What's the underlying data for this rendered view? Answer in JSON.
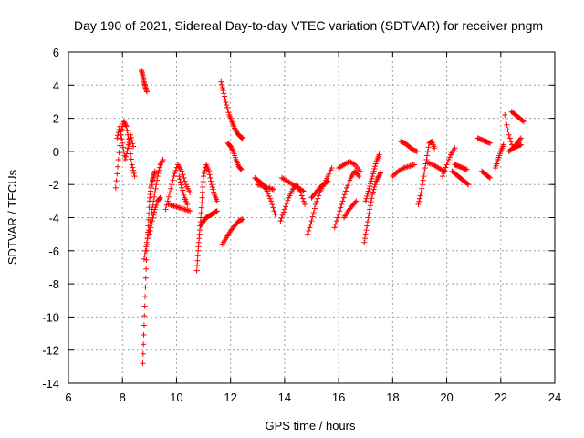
{
  "chart_data": {
    "type": "scatter",
    "title": "Day 190 of 2021, Sidereal Day-to-day VTEC variation (SDTVAR) for receiver pngm",
    "xlabel": "GPS time / hours",
    "ylabel": "SDTVAR / TECUs",
    "xlim": [
      6,
      24
    ],
    "ylim": [
      -14,
      6
    ],
    "xticks": [
      6,
      8,
      10,
      12,
      14,
      16,
      18,
      20,
      22,
      24
    ],
    "yticks": [
      6,
      4,
      2,
      0,
      -2,
      -4,
      -6,
      -8,
      -10,
      -12,
      -14
    ],
    "grid": true,
    "marker": "plus",
    "color": "#ff0000",
    "arcs": [
      {
        "x": [
          7.75,
          7.85,
          7.95,
          8.05,
          8.15,
          8.25,
          8.35,
          8.45
        ],
        "y": [
          -2.2,
          -0.5,
          1.2,
          1.8,
          1.5,
          0.5,
          -0.8,
          -1.5
        ]
      },
      {
        "x": [
          7.8,
          7.9,
          8.0,
          8.1,
          8.2,
          8.3,
          8.4
        ],
        "y": [
          0.8,
          1.5,
          0.5,
          -0.5,
          0.2,
          1.0,
          0.3
        ]
      },
      {
        "x": [
          8.7,
          8.75,
          8.8,
          8.85,
          8.9
        ],
        "y": [
          4.9,
          4.6,
          4.2,
          3.9,
          3.6
        ]
      },
      {
        "x": [
          8.75,
          8.8,
          8.85,
          8.9,
          8.95,
          9.0,
          9.05,
          9.1,
          9.15,
          9.2
        ],
        "y": [
          -12.8,
          -10.5,
          -8.2,
          -6.0,
          -4.5,
          -3.0,
          -2.2,
          -1.8,
          -1.5,
          -1.2
        ]
      },
      {
        "x": [
          8.8,
          8.9,
          9.0,
          9.1,
          9.2,
          9.3,
          9.4,
          9.5
        ],
        "y": [
          -6.5,
          -5.5,
          -4.5,
          -3.5,
          -2.5,
          -1.5,
          -0.8,
          -0.5
        ]
      },
      {
        "x": [
          9.0,
          9.1,
          9.2,
          9.3,
          9.4
        ],
        "y": [
          -5.0,
          -4.2,
          -3.5,
          -3.0,
          -2.8
        ]
      },
      {
        "x": [
          9.6,
          9.75,
          9.9,
          10.05,
          10.2,
          10.35,
          10.5
        ],
        "y": [
          -3.5,
          -2.5,
          -1.5,
          -0.8,
          -1.2,
          -2.0,
          -2.5
        ]
      },
      {
        "x": [
          9.7,
          9.9,
          10.1,
          10.3,
          10.5
        ],
        "y": [
          -3.2,
          -3.3,
          -3.4,
          -3.5,
          -3.6
        ]
      },
      {
        "x": [
          10.1,
          10.2,
          10.3,
          10.4
        ],
        "y": [
          -1.5,
          -2.2,
          -2.8,
          -3.2
        ]
      },
      {
        "x": [
          10.75,
          10.8,
          10.85,
          10.9,
          10.95,
          11.0,
          11.1,
          11.2,
          11.3,
          11.4,
          11.5
        ],
        "y": [
          -7.2,
          -6.0,
          -5.0,
          -4.0,
          -2.8,
          -1.5,
          -0.8,
          -1.2,
          -2.0,
          -2.6,
          -3.0
        ]
      },
      {
        "x": [
          10.9,
          11.0,
          11.1,
          11.2,
          11.3,
          11.4,
          11.5
        ],
        "y": [
          -4.5,
          -4.2,
          -4.0,
          -3.9,
          -3.8,
          -3.7,
          -3.6
        ]
      },
      {
        "x": [
          11.65,
          11.75,
          11.85,
          11.95,
          12.05,
          12.15,
          12.25,
          12.35,
          12.45
        ],
        "y": [
          4.2,
          3.5,
          2.8,
          2.2,
          1.8,
          1.4,
          1.1,
          0.9,
          0.8
        ]
      },
      {
        "x": [
          11.9,
          12.0,
          12.1,
          12.2,
          12.3,
          12.4
        ],
        "y": [
          0.5,
          0.3,
          0.0,
          -0.5,
          -0.9,
          -1.1
        ]
      },
      {
        "x": [
          11.7,
          11.85,
          12.0,
          12.15,
          12.3,
          12.45
        ],
        "y": [
          -5.6,
          -5.2,
          -4.8,
          -4.5,
          -4.2,
          -4.1
        ]
      },
      {
        "x": [
          12.9,
          13.05,
          13.2,
          13.35,
          13.5,
          13.65
        ],
        "y": [
          -1.6,
          -1.8,
          -2.0,
          -2.4,
          -3.0,
          -3.8
        ]
      },
      {
        "x": [
          13.0,
          13.2,
          13.4,
          13.6
        ],
        "y": [
          -2.0,
          -2.1,
          -2.2,
          -2.3
        ]
      },
      {
        "x": [
          13.85,
          14.0,
          14.15,
          14.3,
          14.45,
          14.6,
          14.75
        ],
        "y": [
          -4.2,
          -3.5,
          -2.8,
          -2.3,
          -2.0,
          -2.5,
          -3.2
        ]
      },
      {
        "x": [
          13.9,
          14.1,
          14.3,
          14.5,
          14.7
        ],
        "y": [
          -1.6,
          -1.8,
          -2.0,
          -2.2,
          -2.4
        ]
      },
      {
        "x": [
          14.85,
          15.0,
          15.15,
          15.3,
          15.45,
          15.6,
          15.75
        ],
        "y": [
          -5.0,
          -4.2,
          -3.2,
          -2.5,
          -2.0,
          -1.5,
          -1.0
        ]
      },
      {
        "x": [
          15.0,
          15.15,
          15.3,
          15.45,
          15.6
        ],
        "y": [
          -2.8,
          -2.5,
          -2.2,
          -2.0,
          -1.8
        ]
      },
      {
        "x": [
          15.85,
          16.0,
          16.15,
          16.3,
          16.45,
          16.6,
          16.75
        ],
        "y": [
          -4.6,
          -3.8,
          -3.0,
          -2.2,
          -1.6,
          -1.2,
          -1.5
        ]
      },
      {
        "x": [
          16.2,
          16.35,
          16.5,
          16.65
        ],
        "y": [
          -4.0,
          -3.6,
          -3.3,
          -3.0
        ]
      },
      {
        "x": [
          16.0,
          16.2,
          16.4,
          16.6,
          16.8
        ],
        "y": [
          -1.0,
          -0.8,
          -0.6,
          -0.8,
          -1.2
        ]
      },
      {
        "x": [
          16.95,
          17.05,
          17.15,
          17.25,
          17.35,
          17.45,
          17.55
        ],
        "y": [
          -5.5,
          -4.5,
          -3.5,
          -2.6,
          -2.0,
          -1.6,
          -1.3
        ]
      },
      {
        "x": [
          17.0,
          17.1,
          17.2,
          17.3,
          17.4,
          17.5
        ],
        "y": [
          -3.0,
          -2.4,
          -1.8,
          -1.2,
          -0.6,
          -0.2
        ]
      },
      {
        "x": [
          18.0,
          18.2,
          18.4,
          18.6,
          18.8
        ],
        "y": [
          -1.5,
          -1.2,
          -1.0,
          -0.9,
          -0.8
        ]
      },
      {
        "x": [
          18.3,
          18.45,
          18.6,
          18.75,
          18.9
        ],
        "y": [
          0.6,
          0.5,
          0.3,
          0.1,
          0.0
        ]
      },
      {
        "x": [
          18.95,
          19.05,
          19.15,
          19.25,
          19.35,
          19.45,
          19.55
        ],
        "y": [
          -3.2,
          -2.5,
          -1.5,
          -0.5,
          0.5,
          0.6,
          0.2
        ]
      },
      {
        "x": [
          19.3,
          19.5,
          19.7,
          19.9
        ],
        "y": [
          -0.7,
          -0.8,
          -1.0,
          -1.2
        ]
      },
      {
        "x": [
          19.85,
          20.0,
          20.15,
          20.3
        ],
        "y": [
          -1.5,
          -0.8,
          -0.2,
          0.2
        ]
      },
      {
        "x": [
          20.3,
          20.45,
          20.6,
          20.75
        ],
        "y": [
          -0.8,
          -0.9,
          -1.0,
          -1.1
        ]
      },
      {
        "x": [
          20.2,
          20.35,
          20.5,
          20.65,
          20.8
        ],
        "y": [
          -1.2,
          -1.4,
          -1.6,
          -1.8,
          -2.0
        ]
      },
      {
        "x": [
          21.15,
          21.3,
          21.45,
          21.6
        ],
        "y": [
          0.8,
          0.7,
          0.6,
          0.5
        ]
      },
      {
        "x": [
          21.3,
          21.45,
          21.6
        ],
        "y": [
          -1.2,
          -1.4,
          -1.6
        ]
      },
      {
        "x": [
          21.8,
          21.9,
          22.0,
          22.1
        ],
        "y": [
          -1.0,
          -0.5,
          0.0,
          0.4
        ]
      },
      {
        "x": [
          22.15,
          22.3,
          22.45,
          22.6,
          22.75
        ],
        "y": [
          2.2,
          1.0,
          0.2,
          0.5,
          0.8
        ]
      },
      {
        "x": [
          22.3,
          22.45,
          22.6,
          22.75
        ],
        "y": [
          0.0,
          0.2,
          0.3,
          0.4
        ]
      },
      {
        "x": [
          22.4,
          22.55,
          22.7,
          22.85
        ],
        "y": [
          2.4,
          2.2,
          2.0,
          1.8
        ]
      }
    ]
  }
}
